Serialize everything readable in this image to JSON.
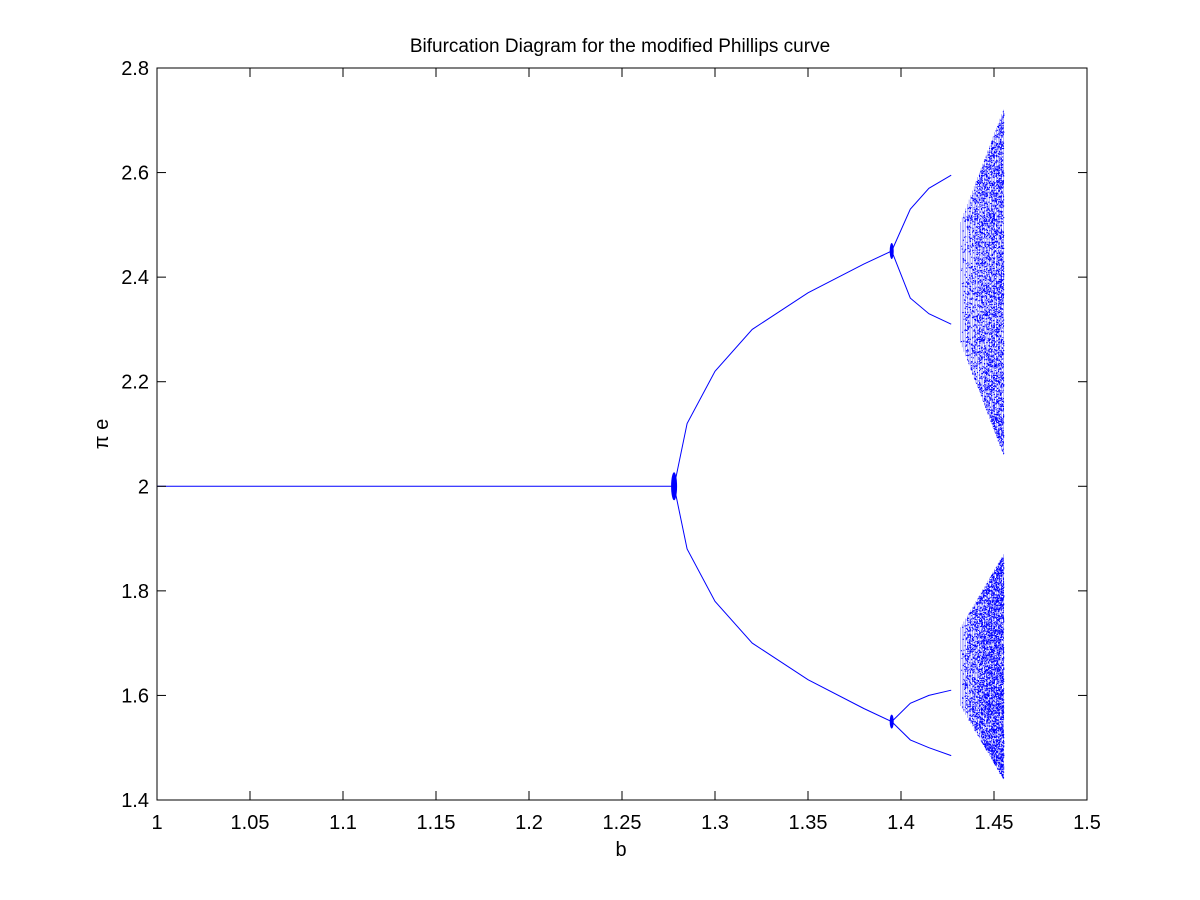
{
  "chart_data": {
    "type": "scatter",
    "title": "Bifurcation Diagram for the modified Phillips curve",
    "xlabel": "b",
    "ylabel": "π e",
    "xlim": [
      1,
      1.5
    ],
    "ylim": [
      1.4,
      2.8
    ],
    "xticks": [
      1,
      1.05,
      1.1,
      1.15,
      1.2,
      1.25,
      1.3,
      1.35,
      1.4,
      1.45,
      1.5
    ],
    "xtick_labels": [
      "1",
      "1.05",
      "1.1",
      "1.15",
      "1.2",
      "1.25",
      "1.3",
      "1.35",
      "1.4",
      "1.45",
      "1.5"
    ],
    "yticks": [
      1.4,
      1.6,
      1.8,
      2,
      2.2,
      2.4,
      2.6,
      2.8
    ],
    "ytick_labels": [
      "1.4",
      "1.6",
      "1.8",
      "2",
      "2.2",
      "2.4",
      "2.6",
      "2.8"
    ],
    "grid": false,
    "marker_color": "#0000ff",
    "series": [
      {
        "x": [
          1.0,
          1.1,
          1.2,
          1.278
        ],
        "y": [
          2.0,
          2.0,
          2.0,
          2.0
        ]
      },
      {
        "x": [
          1.278,
          1.285,
          1.3,
          1.32,
          1.35,
          1.38,
          1.395
        ],
        "y": [
          2.0,
          2.12,
          2.22,
          2.3,
          2.37,
          2.425,
          2.45
        ]
      },
      {
        "x": [
          1.278,
          1.285,
          1.3,
          1.32,
          1.35,
          1.38,
          1.395
        ],
        "y": [
          2.0,
          1.88,
          1.78,
          1.7,
          1.63,
          1.575,
          1.55
        ]
      },
      {
        "x": [
          1.395,
          1.405,
          1.415,
          1.427
        ],
        "y": [
          2.45,
          2.53,
          2.57,
          2.595
        ]
      },
      {
        "x": [
          1.395,
          1.405,
          1.415,
          1.427
        ],
        "y": [
          2.45,
          2.36,
          2.33,
          2.31
        ]
      },
      {
        "x": [
          1.395,
          1.405,
          1.415,
          1.427
        ],
        "y": [
          1.55,
          1.585,
          1.6,
          1.61
        ]
      },
      {
        "x": [
          1.395,
          1.405,
          1.415,
          1.427
        ],
        "y": [
          1.55,
          1.515,
          1.5,
          1.485
        ]
      }
    ],
    "chaotic_region": {
      "x_range": [
        1.432,
        1.455
      ],
      "upper_band": [
        2.06,
        2.72
      ],
      "lower_band": [
        1.44,
        1.87
      ]
    }
  }
}
